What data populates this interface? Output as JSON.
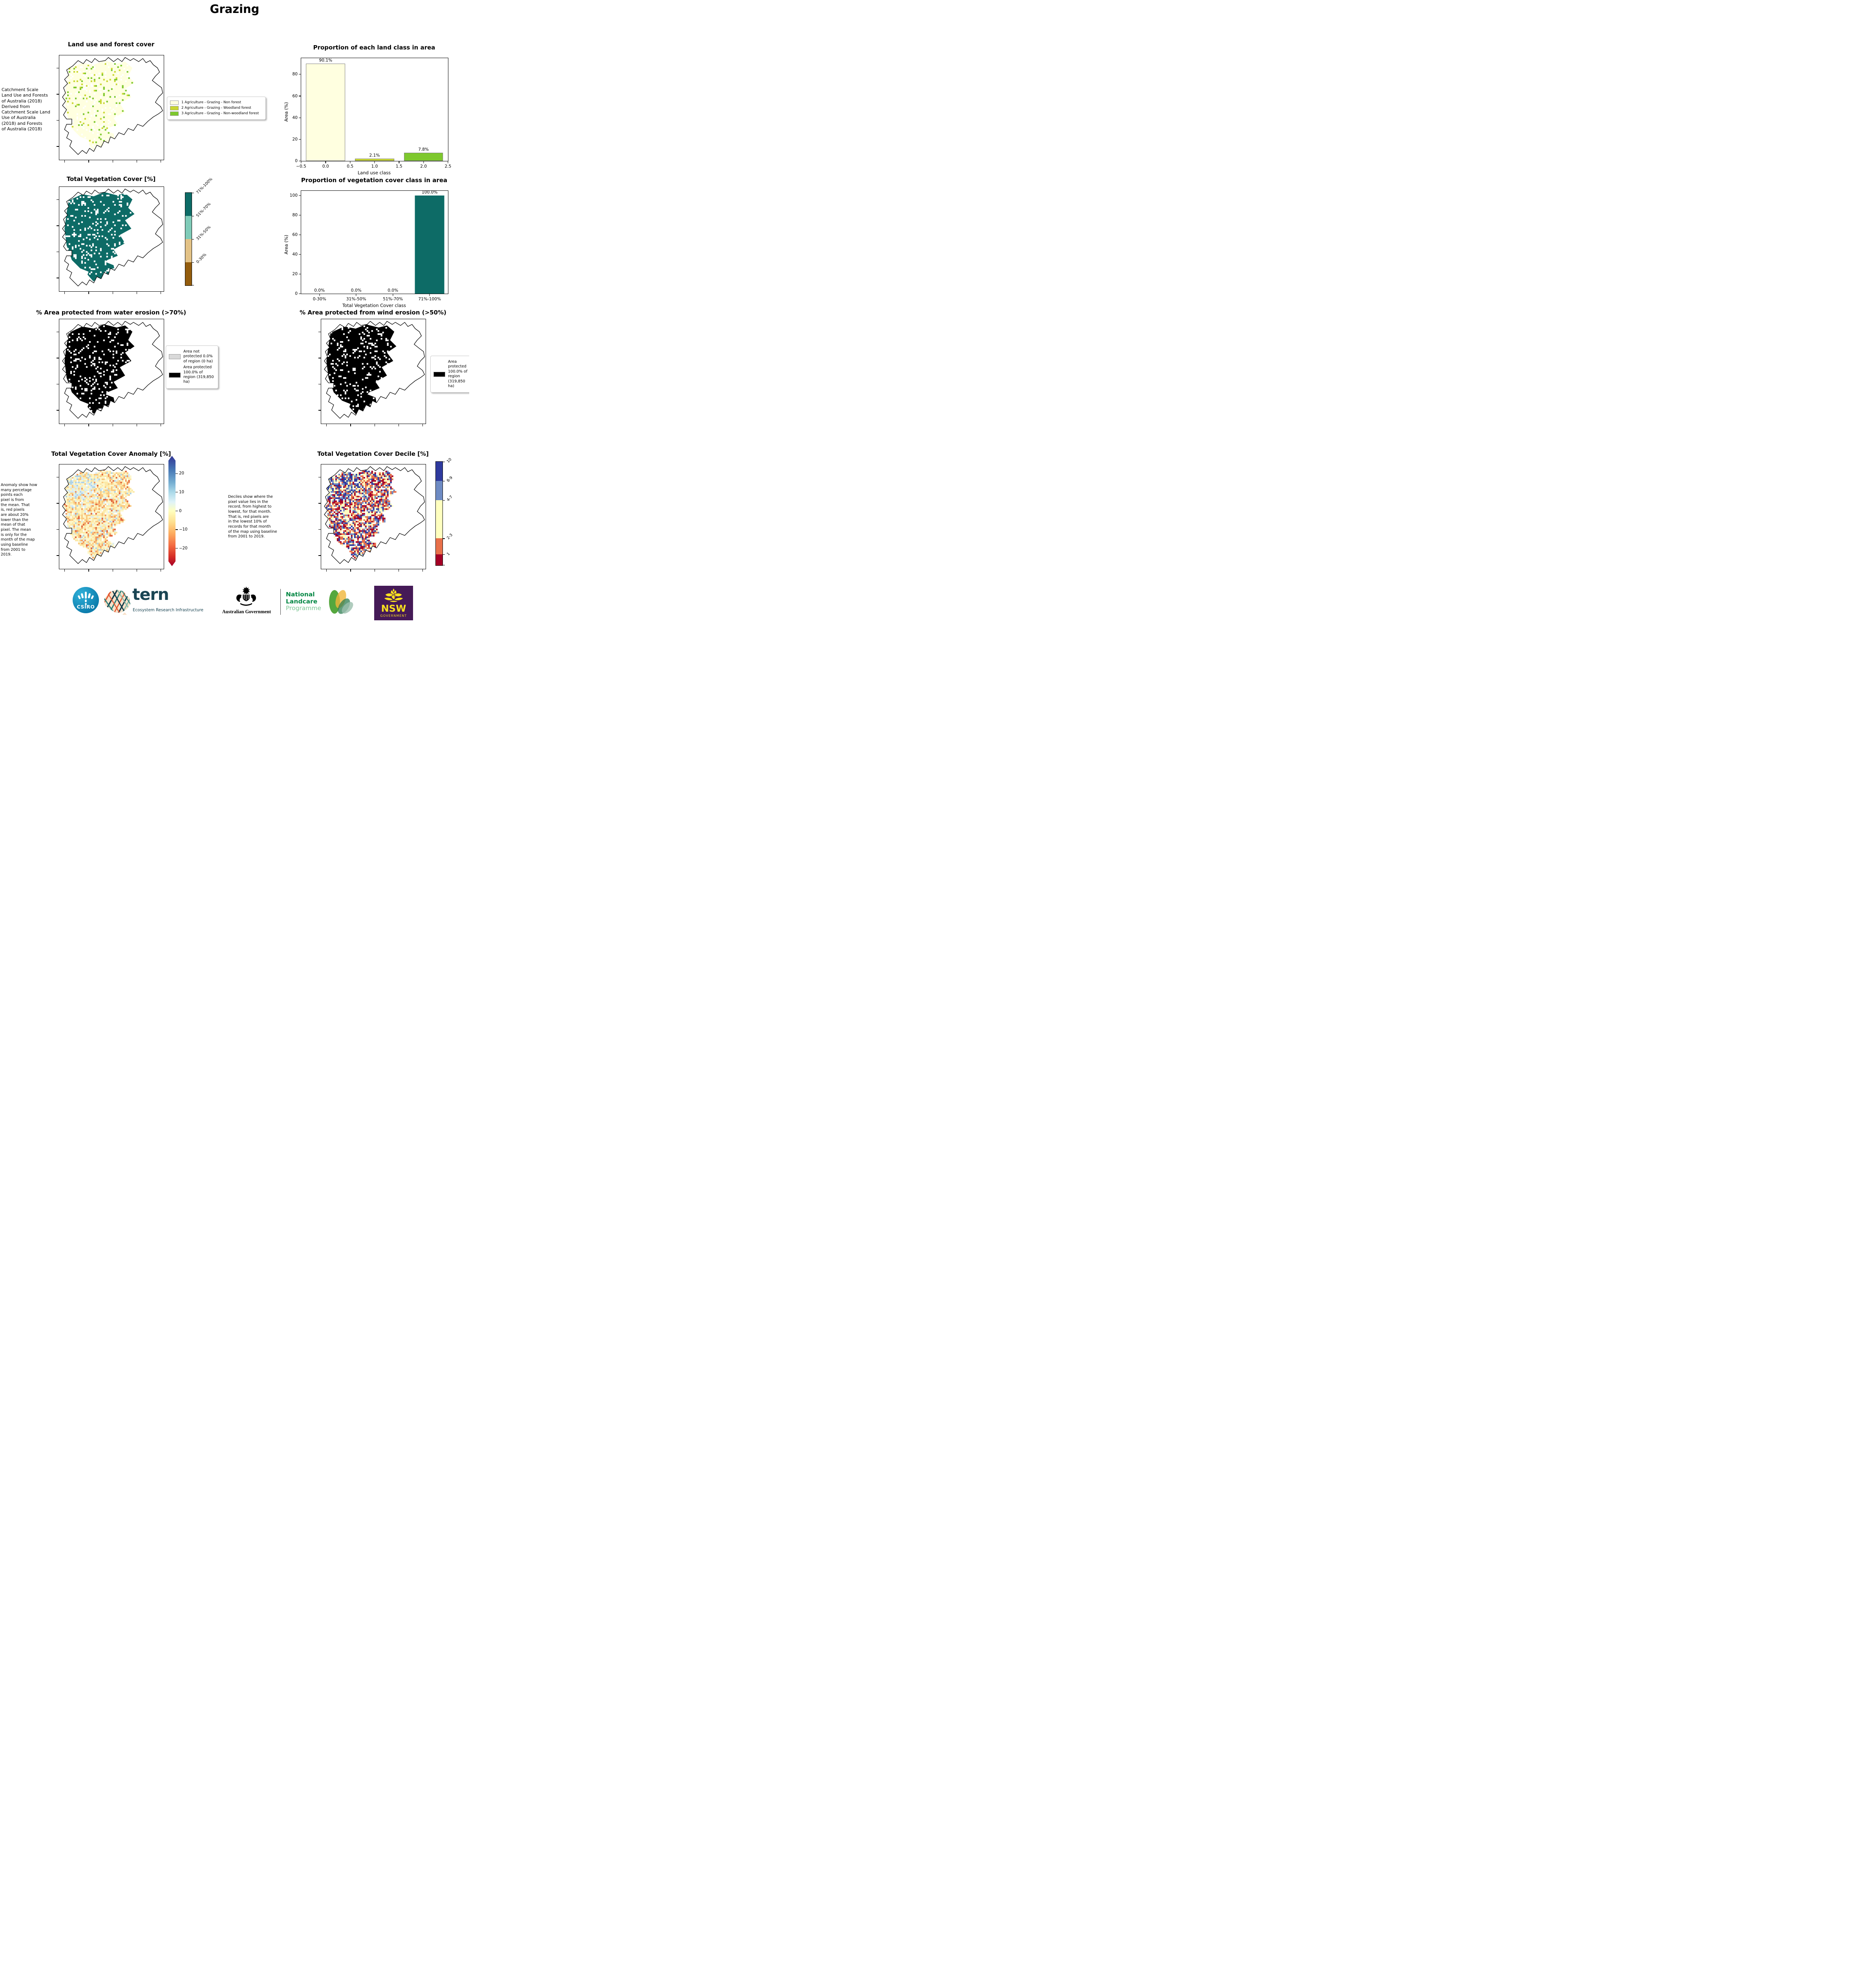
{
  "page": {
    "title": "Grazing"
  },
  "panels": {
    "land_use_map": {
      "title": "Land use and forest cover",
      "caption": "Catchment Scale\nLand Use and Forests\nof Australia (2018)\nDerived from\nCatchment Scale Land\nUse of Australia\n(2018) and Forests\nof Australia (2018)",
      "legend": [
        {
          "label": "1 Agriculture - Grazing - Non forest",
          "color": "#ffffe0"
        },
        {
          "label": "2 Agriculture - Grazing - Woodland forest",
          "color": "#c9d732"
        },
        {
          "label": "3 Agriculture - Grazing - Non-woodland forest",
          "color": "#7ec82e"
        }
      ]
    },
    "veg_cover_map": {
      "title": "Total Vegetation Cover [%]",
      "colorbar": [
        {
          "label": "71%-100%",
          "color": "#0d6b66",
          "size": 25
        },
        {
          "label": "51%-70%",
          "color": "#7fcbb8",
          "size": 25
        },
        {
          "label": "31%-50%",
          "color": "#e3c286",
          "size": 25
        },
        {
          "label": "0-30%",
          "color": "#935c0d",
          "size": 25
        }
      ]
    },
    "water_erosion_map": {
      "title": "% Area protected from water erosion (>70%)",
      "legend": [
        {
          "label": "Area not protected 0.0% of region (0 ha)",
          "color": "#d9d9d9"
        },
        {
          "label": "Area protected 100.0% of region (319,850 ha)",
          "color": "#000000"
        }
      ]
    },
    "wind_erosion_map": {
      "title": "% Area protected from wind erosion (>50%)",
      "legend": [
        {
          "label": "Area protected 100.0% of region (319,850 ha)",
          "color": "#000000"
        }
      ]
    },
    "anomaly_map": {
      "title": "Total Vegetation Cover Anomaly [%]",
      "caption": "Anomaly show how\nmany percetage\npoints each\npixel is from\nthe mean. That\nis, red pixels\nare about 20%\nlower than the\nmean of that\npixel. The mean\nis only for the\nmonth of the map\nusing baseline\nfrom 2001 to\n2019.",
      "colorbar_ticks": [
        {
          "value": 20,
          "label": "20"
        },
        {
          "value": 10,
          "label": "10"
        },
        {
          "value": 0,
          "label": "0"
        },
        {
          "value": -10,
          "label": "−10"
        },
        {
          "value": -20,
          "label": "−20"
        }
      ]
    },
    "decile_map": {
      "title": "Total Vegetation Cover Decile [%]",
      "caption": "Deciles show where the\npixel value lies in the\nrecord, from highest to\nlowest, for that month.\nThat is, red pixels are\nin the lowest 10% of\nrecords for that month\nof the map using baseline\nfrom 2001 to 2019.",
      "colorbar": [
        {
          "label": "10",
          "color": "#2f3a9e",
          "size": 18.5
        },
        {
          "label": "8-9",
          "color": "#6e8bc3",
          "size": 18.5
        },
        {
          "label": "4-7",
          "color": "#ffffbf",
          "size": 37
        },
        {
          "label": "2-3",
          "color": "#e8704a",
          "size": 15.5
        },
        {
          "label": "1",
          "color": "#a50026",
          "size": 10.5
        }
      ]
    }
  },
  "chart_data": [
    {
      "type": "bar",
      "title": "Proportion of each land class in area",
      "xlabel": "Land use class",
      "ylabel": "Area (%)",
      "x": [
        0,
        1,
        2
      ],
      "values": [
        90.1,
        2.1,
        7.8
      ],
      "bar_labels": [
        "90.1%",
        "2.1%",
        "7.8%"
      ],
      "bar_colors": [
        "#ffffe0",
        "#c9d732",
        "#7ec82e"
      ],
      "bar_edge": "#7f7f7f",
      "xlim": [
        -0.5,
        2.5
      ],
      "ylim": [
        0,
        95
      ],
      "xticks": [
        {
          "v": -0.5,
          "label": "−0.5"
        },
        {
          "v": 0.0,
          "label": "0.0"
        },
        {
          "v": 0.5,
          "label": "0.5"
        },
        {
          "v": 1.0,
          "label": "1.0"
        },
        {
          "v": 1.5,
          "label": "1.5"
        },
        {
          "v": 2.0,
          "label": "2.0"
        },
        {
          "v": 2.5,
          "label": "2.5"
        }
      ],
      "yticks": [
        0,
        20,
        40,
        60,
        80
      ],
      "legend_position": "none",
      "grid": false
    },
    {
      "type": "bar",
      "title": "Proportion of vegetation cover class in area",
      "xlabel": "Total Vegetation Cover class",
      "ylabel": "Area (%)",
      "categories": [
        "0-30%",
        "31%-50%",
        "51%-70%",
        "71%-100%"
      ],
      "values": [
        0.0,
        0.0,
        0.0,
        100.0
      ],
      "bar_labels": [
        "0.0%",
        "0.0%",
        "0.0%",
        "100.0%"
      ],
      "bar_colors": [
        "#0d6b66",
        "#0d6b66",
        "#0d6b66",
        "#0d6b66"
      ],
      "ylim": [
        0,
        105
      ],
      "yticks": [
        0,
        20,
        40,
        60,
        80,
        100
      ],
      "legend_position": "none",
      "grid": false
    }
  ],
  "footer": {
    "csiro": "CSIRO",
    "tern": "tern",
    "tern_sub": "Ecosystem Research Infrastructure",
    "aus_gov": "Australian Government",
    "landcare_lines": [
      "National",
      "Landcare",
      "Programme"
    ],
    "nsw": "NSW",
    "nsw_sub": "GOVERNMENT"
  }
}
